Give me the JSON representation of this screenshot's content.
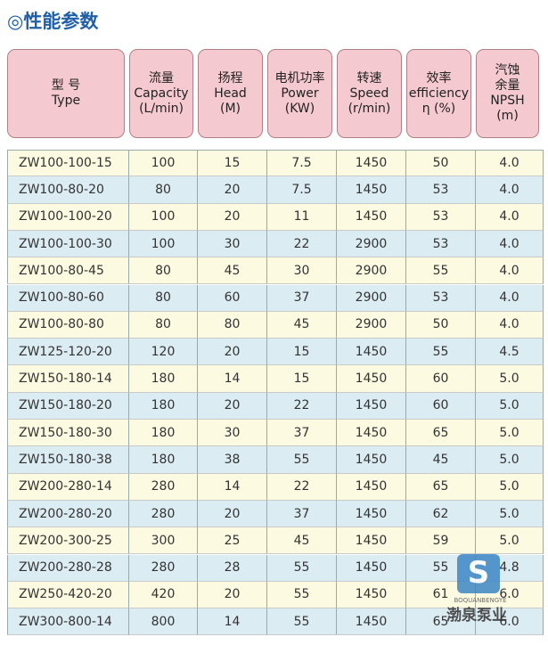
{
  "title": "◎性能参数",
  "table": {
    "headers": [
      [
        "型 号",
        "Type"
      ],
      [
        "流量",
        "Capacity",
        "(L/min)"
      ],
      [
        "扬程",
        "Head",
        "(M)"
      ],
      [
        "电机功率",
        "Power",
        "(KW)"
      ],
      [
        "转速",
        "Speed",
        "(r/min)"
      ],
      [
        "效率",
        "efficiency",
        "η (%)"
      ],
      [
        "汽蚀",
        "余量",
        "NPSH",
        "(m)"
      ]
    ],
    "rows": [
      [
        "ZW100-100-15",
        "100",
        "15",
        "7.5",
        "1450",
        "50",
        "4.0"
      ],
      [
        "ZW100-80-20",
        "80",
        "20",
        "7.5",
        "1450",
        "53",
        "4.0"
      ],
      [
        "ZW100-100-20",
        "100",
        "20",
        "11",
        "1450",
        "53",
        "4.0"
      ],
      [
        "ZW100-100-30",
        "100",
        "30",
        "22",
        "2900",
        "53",
        "4.0"
      ],
      [
        "ZW100-80-45",
        "80",
        "45",
        "30",
        "2900",
        "55",
        "4.0"
      ],
      [
        "ZW100-80-60",
        "80",
        "60",
        "37",
        "2900",
        "53",
        "4.0"
      ],
      [
        "ZW100-80-80",
        "80",
        "80",
        "45",
        "2900",
        "50",
        "4.0"
      ],
      [
        "ZW125-120-20",
        "120",
        "20",
        "15",
        "1450",
        "55",
        "4.5"
      ],
      [
        "ZW150-180-14",
        "180",
        "14",
        "15",
        "1450",
        "60",
        "5.0"
      ],
      [
        "ZW150-180-20",
        "180",
        "20",
        "22",
        "1450",
        "60",
        "5.0"
      ],
      [
        "ZW150-180-30",
        "180",
        "30",
        "37",
        "1450",
        "65",
        "5.0"
      ],
      [
        "ZW150-180-38",
        "180",
        "38",
        "55",
        "1450",
        "45",
        "5.0"
      ],
      [
        "ZW200-280-14",
        "280",
        "14",
        "22",
        "1450",
        "65",
        "5.0"
      ],
      [
        "ZW200-280-20",
        "280",
        "20",
        "37",
        "1450",
        "62",
        "5.0"
      ],
      [
        "ZW200-300-25",
        "300",
        "25",
        "45",
        "1450",
        "59",
        "5.0"
      ],
      [
        "ZW200-280-28",
        "280",
        "28",
        "55",
        "1450",
        "55",
        "4.8"
      ],
      [
        "ZW250-420-20",
        "420",
        "20",
        "55",
        "1450",
        "61",
        "6.0"
      ],
      [
        "ZW300-800-14",
        "800",
        "14",
        "55",
        "1450",
        "65",
        "6.0"
      ]
    ]
  },
  "watermark": {
    "name": "渤泉泵业",
    "sub": "BOQUANBENGYE"
  }
}
